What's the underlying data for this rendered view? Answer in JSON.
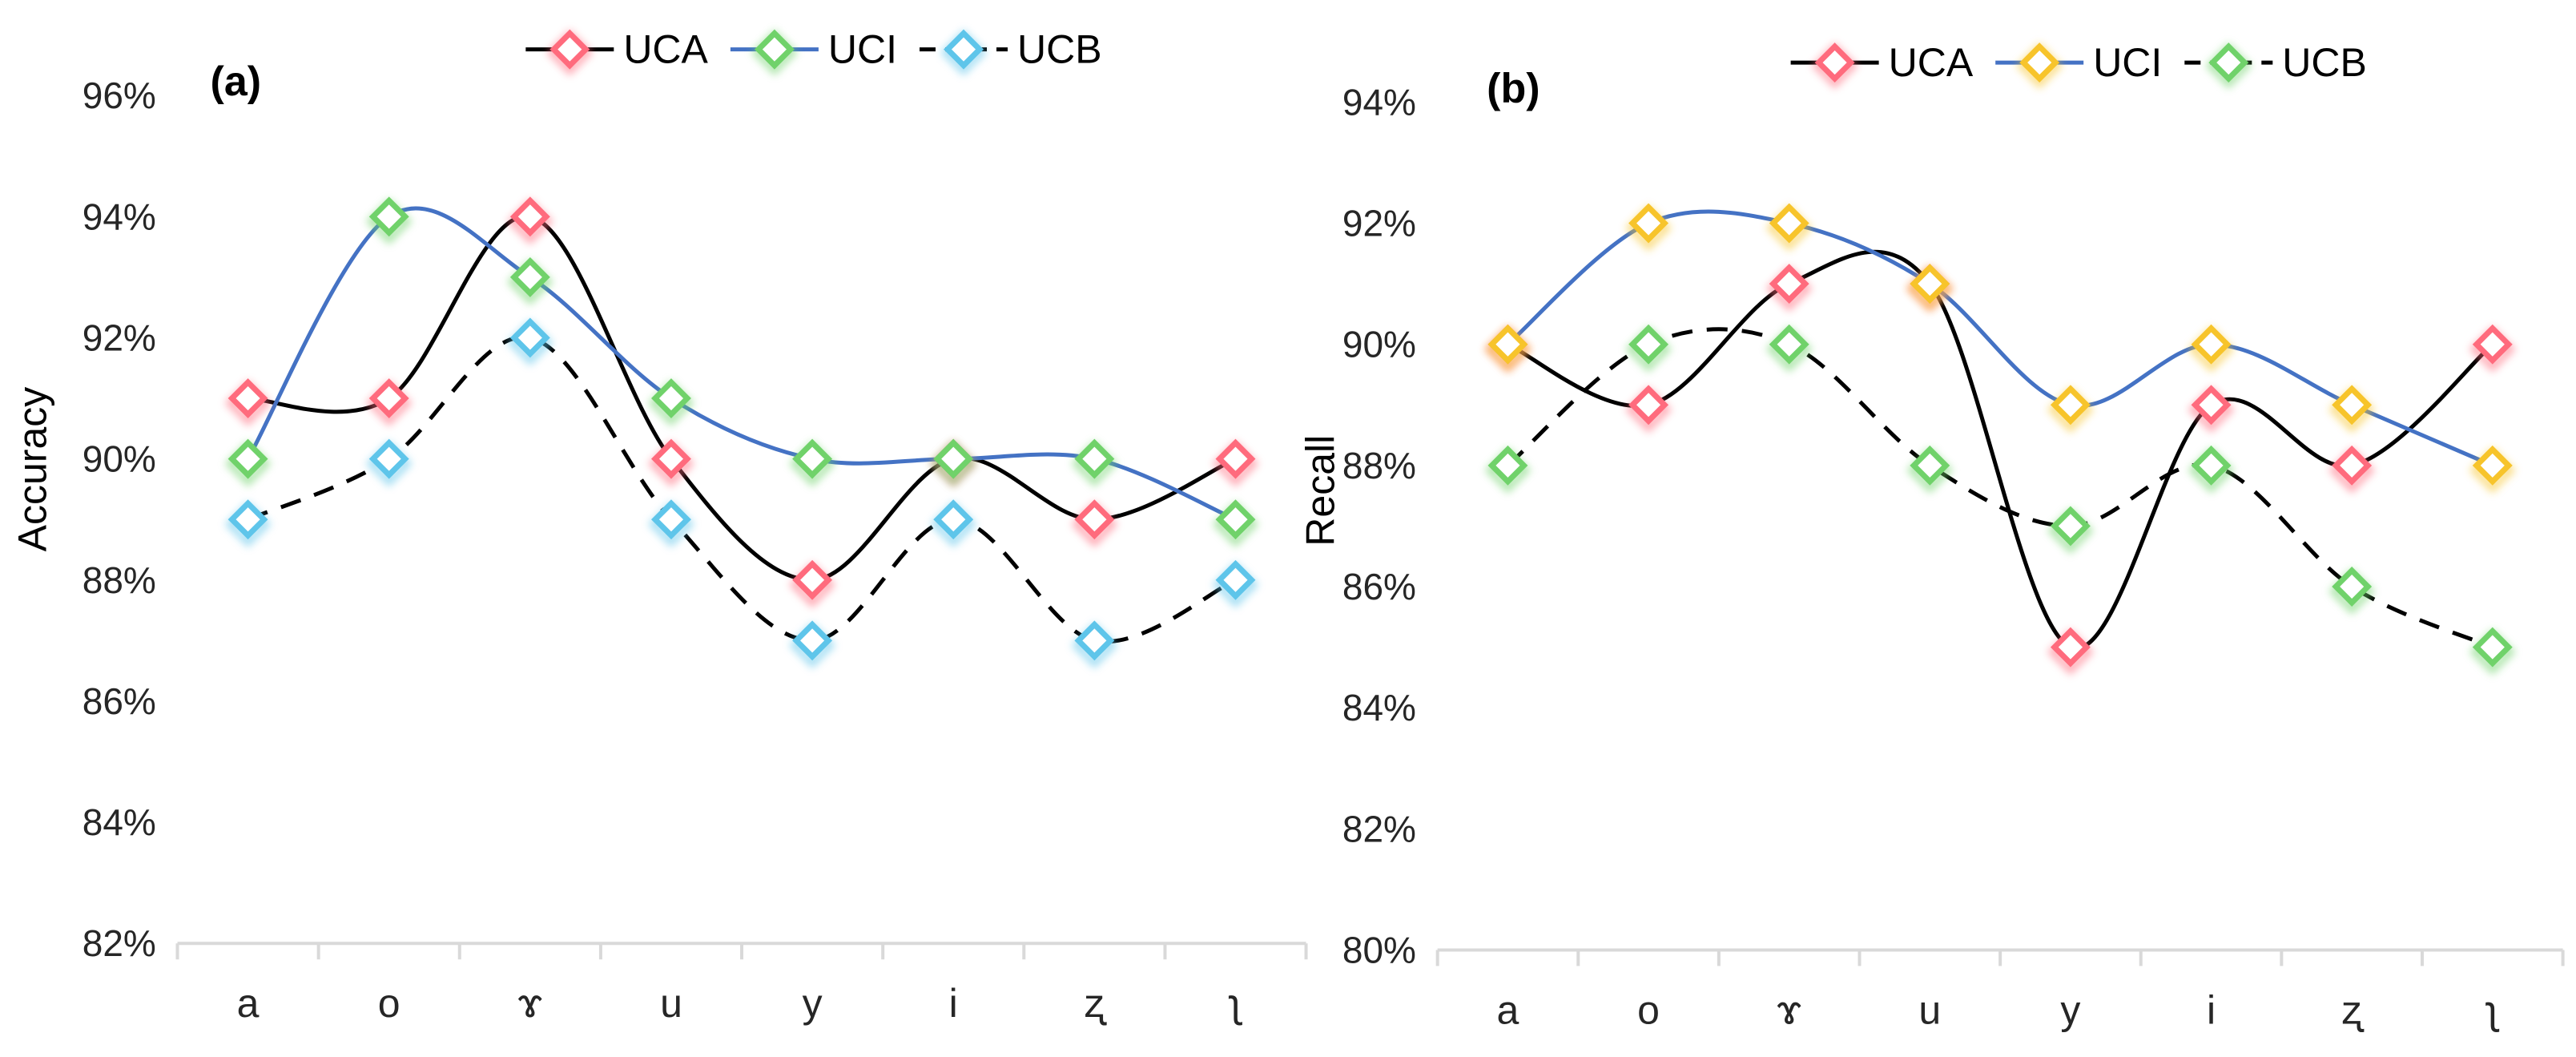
{
  "chart_data": [
    {
      "type": "line",
      "panel_label": "(a)",
      "title": "",
      "xlabel": "",
      "ylabel": "Accuracy",
      "categories": [
        "a",
        "o",
        "ɤ",
        "u",
        "y",
        "i",
        "ʐ",
        "ʅ"
      ],
      "ylim": [
        82,
        96
      ],
      "yticks": [
        82,
        84,
        86,
        88,
        90,
        92,
        94,
        96
      ],
      "tick_suffix": "%",
      "legend": "top",
      "series": [
        {
          "name": "UCA",
          "values": [
            91,
            91,
            94,
            90,
            88,
            90,
            89,
            90
          ],
          "line_color": "#000000",
          "marker_color": "#ff6b7d",
          "dashed": false
        },
        {
          "name": "UCI",
          "values": [
            90,
            94,
            93,
            91,
            90,
            90,
            90,
            89
          ],
          "line_color": "#4472c4",
          "marker_color": "#70d26a",
          "dashed": false
        },
        {
          "name": "UCB",
          "values": [
            89,
            90,
            92,
            89,
            87,
            89,
            87,
            88
          ],
          "line_color": "#000000",
          "marker_color": "#5ec5ea",
          "dashed": true
        }
      ]
    },
    {
      "type": "line",
      "panel_label": "(b)",
      "title": "",
      "xlabel": "",
      "ylabel": "Recall",
      "categories": [
        "a",
        "o",
        "ɤ",
        "u",
        "y",
        "i",
        "ʐ",
        "ʅ"
      ],
      "ylim": [
        80,
        94
      ],
      "yticks": [
        80,
        82,
        84,
        86,
        88,
        90,
        92,
        94
      ],
      "tick_suffix": "%",
      "legend": "top",
      "series": [
        {
          "name": "UCA",
          "values": [
            90,
            89,
            91,
            91,
            85,
            89,
            88,
            90
          ],
          "line_color": "#000000",
          "marker_color": "#ff6b7d",
          "dashed": false
        },
        {
          "name": "UCI",
          "values": [
            90,
            92,
            92,
            91,
            89,
            90,
            89,
            88
          ],
          "line_color": "#4472c4",
          "marker_color": "#f7c42b",
          "dashed": false
        },
        {
          "name": "UCB",
          "values": [
            88,
            90,
            90,
            88,
            87,
            88,
            86,
            85
          ],
          "line_color": "#000000",
          "marker_color": "#70d26a",
          "dashed": true
        }
      ]
    }
  ]
}
